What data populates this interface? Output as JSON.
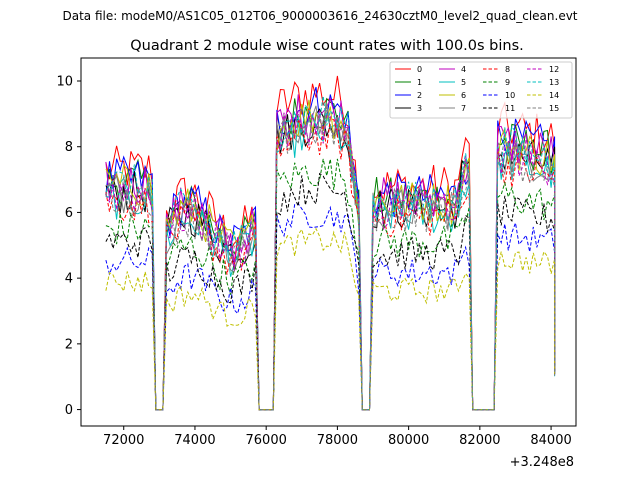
{
  "chart_data": {
    "type": "line",
    "suptitle": "Data file: modeM0/AS1C05_012T06_9000003616_24630cztM0_level2_quad_clean.evt",
    "title": "Quadrant 2 module wise count rates with 100.0s bins.",
    "xlabel": "",
    "ylabel": "",
    "x_offset_label": "+3.248e8",
    "xlim": [
      70800,
      84700
    ],
    "ylim": [
      -0.5,
      10.7
    ],
    "xticks": [
      72000,
      74000,
      76000,
      78000,
      80000,
      82000,
      84000
    ],
    "xtick_labels": [
      "72000",
      "74000",
      "76000",
      "78000",
      "80000",
      "82000",
      "84000"
    ],
    "yticks": [
      0,
      2,
      4,
      6,
      8,
      10
    ],
    "ytick_labels": [
      "0",
      "2",
      "4",
      "6",
      "8",
      "10"
    ],
    "legend_position": "top-right",
    "segments": [
      {
        "start": 71500,
        "end": 72800,
        "drop_at": 72900
      },
      {
        "start": 73200,
        "end": 75700,
        "drop_at": 75800
      },
      {
        "start": 76300,
        "end": 78600,
        "drop_at": 78700
      },
      {
        "start": 79000,
        "end": 81700,
        "drop_at": 81800
      },
      {
        "start": 82500,
        "end": 84100,
        "drop_at": 84100
      }
    ],
    "series": [
      {
        "name": "0",
        "color": "#ff0000",
        "dash": "solid",
        "level": 7.3
      },
      {
        "name": "1",
        "color": "#008000",
        "dash": "solid",
        "level": 6.9
      },
      {
        "name": "2",
        "color": "#0000ff",
        "dash": "solid",
        "level": 7.0
      },
      {
        "name": "3",
        "color": "#000000",
        "dash": "solid",
        "level": 6.6
      },
      {
        "name": "4",
        "color": "#bf00bf",
        "dash": "solid",
        "level": 6.9
      },
      {
        "name": "5",
        "color": "#00bfbf",
        "dash": "solid",
        "level": 6.4
      },
      {
        "name": "6",
        "color": "#bfbf00",
        "dash": "solid",
        "level": 6.8
      },
      {
        "name": "7",
        "color": "#808080",
        "dash": "solid",
        "level": 6.6
      },
      {
        "name": "8",
        "color": "#ff0000",
        "dash": "dashed",
        "level": 6.3
      },
      {
        "name": "9",
        "color": "#008000",
        "dash": "dashed",
        "level": 5.5
      },
      {
        "name": "10",
        "color": "#0000ff",
        "dash": "dashed",
        "level": 4.5
      },
      {
        "name": "11",
        "color": "#000000",
        "dash": "dashed",
        "level": 5.1
      },
      {
        "name": "12",
        "color": "#bf00bf",
        "dash": "dashed",
        "level": 6.6
      },
      {
        "name": "13",
        "color": "#00bfbf",
        "dash": "dashed",
        "level": 6.8
      },
      {
        "name": "14",
        "color": "#bfbf00",
        "dash": "dashed",
        "level": 3.9
      },
      {
        "name": "15",
        "color": "#808080",
        "dash": "dashed",
        "level": 6.5
      }
    ]
  }
}
